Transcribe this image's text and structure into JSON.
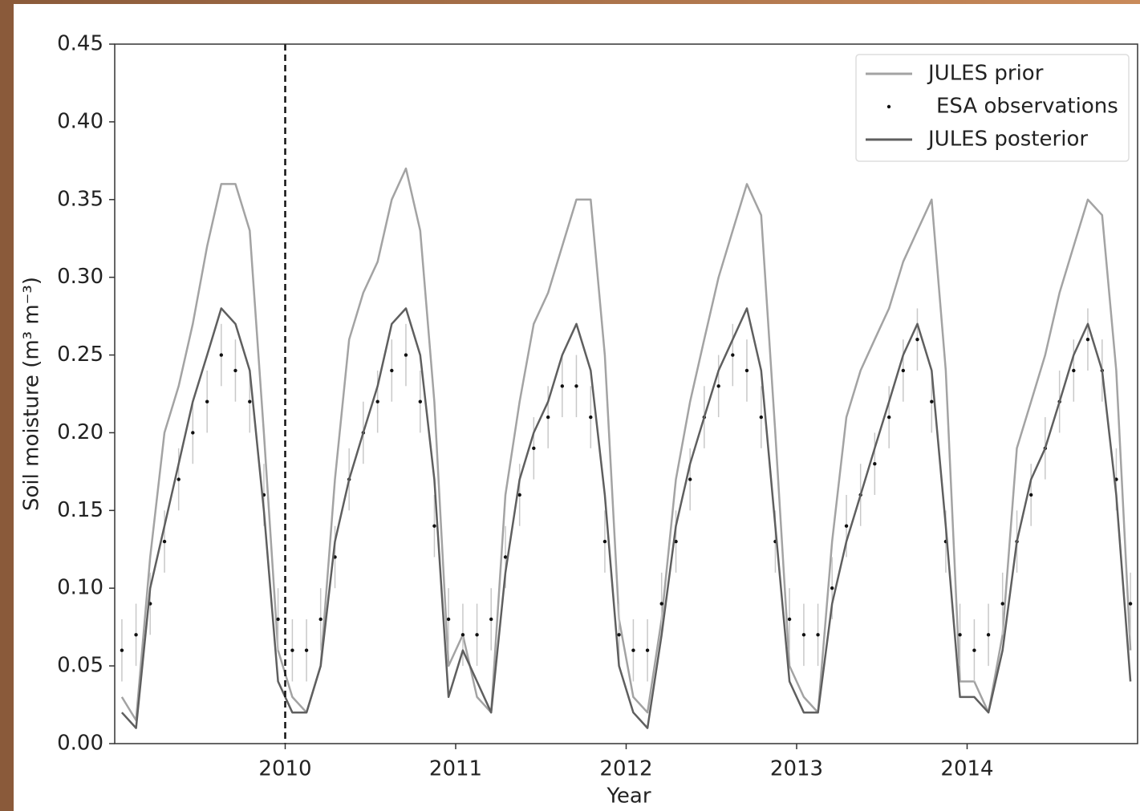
{
  "chart_data": {
    "type": "line",
    "x_label": "Year",
    "y_label": "Soil moisture (m³ m⁻³)",
    "xlim": [
      2009,
      2015
    ],
    "xticks": [
      2010,
      2011,
      2012,
      2013,
      2014
    ],
    "ylim": [
      0,
      0.45
    ],
    "yticks": [
      {
        "value": 0,
        "label": "0.00"
      },
      0.05,
      {
        "value": 0.1,
        "label": "0.10"
      },
      0.15,
      {
        "value": 0.2,
        "label": "0.20"
      },
      0.25,
      {
        "value": 0.3,
        "label": "0.30"
      },
      0.35,
      {
        "value": 0.4,
        "label": "0.40"
      },
      0.45
    ],
    "vline_x": 2010,
    "legend": "upper right",
    "x": [
      2009.042,
      2009.125,
      2009.208,
      2009.292,
      2009.375,
      2009.458,
      2009.542,
      2009.625,
      2009.708,
      2009.792,
      2009.875,
      2009.958,
      2010.042,
      2010.125,
      2010.208,
      2010.292,
      2010.375,
      2010.458,
      2010.542,
      2010.625,
      2010.708,
      2010.792,
      2010.875,
      2010.958,
      2011.042,
      2011.125,
      2011.208,
      2011.292,
      2011.375,
      2011.458,
      2011.542,
      2011.625,
      2011.708,
      2011.792,
      2011.875,
      2011.958,
      2012.042,
      2012.125,
      2012.208,
      2012.292,
      2012.375,
      2012.458,
      2012.542,
      2012.625,
      2012.708,
      2012.792,
      2012.875,
      2012.958,
      2013.042,
      2013.125,
      2013.208,
      2013.292,
      2013.375,
      2013.458,
      2013.542,
      2013.625,
      2013.708,
      2013.792,
      2013.875,
      2013.958,
      2014.042,
      2014.125,
      2014.208,
      2014.292,
      2014.375,
      2014.458,
      2014.542,
      2014.625,
      2014.708,
      2014.792,
      2014.875,
      2014.958
    ],
    "series": [
      {
        "name": "JULES prior",
        "kind": "line",
        "color": "#a3a3a3",
        "values": [
          0.03,
          0.015,
          0.12,
          0.2,
          0.23,
          0.27,
          0.32,
          0.36,
          0.36,
          0.33,
          0.2,
          0.06,
          0.03,
          0.02,
          0.05,
          0.17,
          0.26,
          0.29,
          0.31,
          0.35,
          0.37,
          0.33,
          0.22,
          0.05,
          0.07,
          0.03,
          0.02,
          0.16,
          0.22,
          0.27,
          0.29,
          0.32,
          0.35,
          0.35,
          0.25,
          0.08,
          0.03,
          0.02,
          0.08,
          0.17,
          0.22,
          0.26,
          0.3,
          0.33,
          0.36,
          0.34,
          0.2,
          0.05,
          0.03,
          0.02,
          0.13,
          0.21,
          0.24,
          0.26,
          0.28,
          0.31,
          0.33,
          0.35,
          0.24,
          0.04,
          0.04,
          0.02,
          0.07,
          0.19,
          0.22,
          0.25,
          0.29,
          0.32,
          0.35,
          0.34,
          0.24,
          0.06
        ]
      },
      {
        "name": "ESA observations",
        "kind": "scatter",
        "color": "#111111",
        "error": 0.02,
        "values": [
          0.06,
          0.07,
          0.09,
          0.13,
          0.17,
          0.2,
          0.22,
          0.25,
          0.24,
          0.22,
          0.16,
          0.08,
          0.06,
          0.06,
          0.08,
          0.12,
          0.17,
          0.2,
          0.22,
          0.24,
          0.25,
          0.22,
          0.14,
          0.08,
          0.07,
          0.07,
          0.08,
          0.12,
          0.16,
          0.19,
          0.21,
          0.23,
          0.23,
          0.21,
          0.13,
          0.07,
          0.06,
          0.06,
          0.09,
          0.13,
          0.17,
          0.21,
          0.23,
          0.25,
          0.24,
          0.21,
          0.13,
          0.08,
          0.07,
          0.07,
          0.1,
          0.14,
          0.16,
          0.18,
          0.21,
          0.24,
          0.26,
          0.22,
          0.13,
          0.07,
          0.06,
          0.07,
          0.09,
          0.13,
          0.16,
          0.19,
          0.22,
          0.24,
          0.26,
          0.24,
          0.17,
          0.09
        ]
      },
      {
        "name": "JULES posterior",
        "kind": "line",
        "color": "#5f5f5f",
        "values": [
          0.02,
          0.01,
          0.1,
          0.14,
          0.18,
          0.22,
          0.25,
          0.28,
          0.27,
          0.24,
          0.15,
          0.04,
          0.02,
          0.02,
          0.05,
          0.13,
          0.17,
          0.2,
          0.23,
          0.27,
          0.28,
          0.25,
          0.17,
          0.03,
          0.06,
          0.04,
          0.02,
          0.11,
          0.17,
          0.2,
          0.22,
          0.25,
          0.27,
          0.24,
          0.16,
          0.05,
          0.02,
          0.01,
          0.07,
          0.14,
          0.18,
          0.21,
          0.24,
          0.26,
          0.28,
          0.24,
          0.14,
          0.04,
          0.02,
          0.02,
          0.09,
          0.13,
          0.16,
          0.19,
          0.22,
          0.25,
          0.27,
          0.24,
          0.14,
          0.03,
          0.03,
          0.02,
          0.06,
          0.13,
          0.17,
          0.19,
          0.22,
          0.25,
          0.27,
          0.24,
          0.16,
          0.04
        ]
      }
    ]
  }
}
